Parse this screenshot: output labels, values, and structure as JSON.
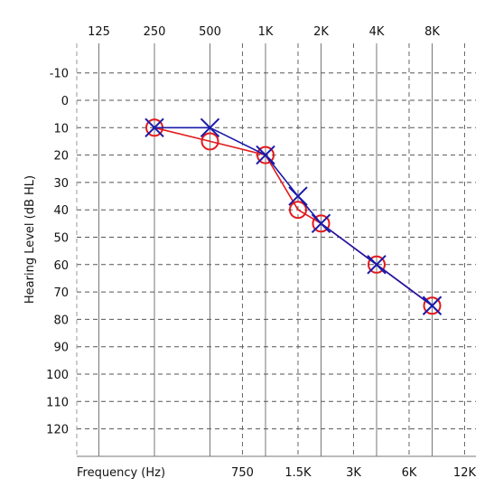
{
  "chart_data": {
    "type": "line",
    "title": "",
    "ylabel": "Hearing Level (dB HL)",
    "xlabel": "Frequency (Hz)",
    "grid": true,
    "ylim": [
      -20,
      130
    ],
    "y_ticks": [
      -10,
      0,
      10,
      20,
      30,
      40,
      50,
      60,
      70,
      80,
      90,
      100,
      110,
      120
    ],
    "top_ticks": [
      {
        "freq": 125,
        "label": "125"
      },
      {
        "freq": 250,
        "label": "250"
      },
      {
        "freq": 500,
        "label": "500"
      },
      {
        "freq": 1000,
        "label": "1K"
      },
      {
        "freq": 2000,
        "label": "2K"
      },
      {
        "freq": 4000,
        "label": "4K"
      },
      {
        "freq": 8000,
        "label": "8K"
      }
    ],
    "bottom_ticks": [
      {
        "freq": 750,
        "label": "750"
      },
      {
        "freq": 1500,
        "label": "1.5K"
      },
      {
        "freq": 3000,
        "label": "3K"
      },
      {
        "freq": 6000,
        "label": "6K"
      },
      {
        "freq": 12000,
        "label": "12K"
      }
    ],
    "series": [
      {
        "marker": "circle",
        "color": "#e31a1c",
        "points": [
          {
            "freq": 250,
            "db": 10
          },
          {
            "freq": 500,
            "db": 15
          },
          {
            "freq": 1000,
            "db": 20
          },
          {
            "freq": 1500,
            "db": 40
          },
          {
            "freq": 2000,
            "db": 45
          },
          {
            "freq": 4000,
            "db": 60
          },
          {
            "freq": 8000,
            "db": 75
          }
        ]
      },
      {
        "marker": "x",
        "color": "#1a1aaa",
        "points": [
          {
            "freq": 250,
            "db": 10
          },
          {
            "freq": 500,
            "db": 10
          },
          {
            "freq": 1000,
            "db": 20
          },
          {
            "freq": 1500,
            "db": 35
          },
          {
            "freq": 2000,
            "db": 45
          },
          {
            "freq": 4000,
            "db": 60
          },
          {
            "freq": 8000,
            "db": 75
          }
        ]
      }
    ]
  }
}
